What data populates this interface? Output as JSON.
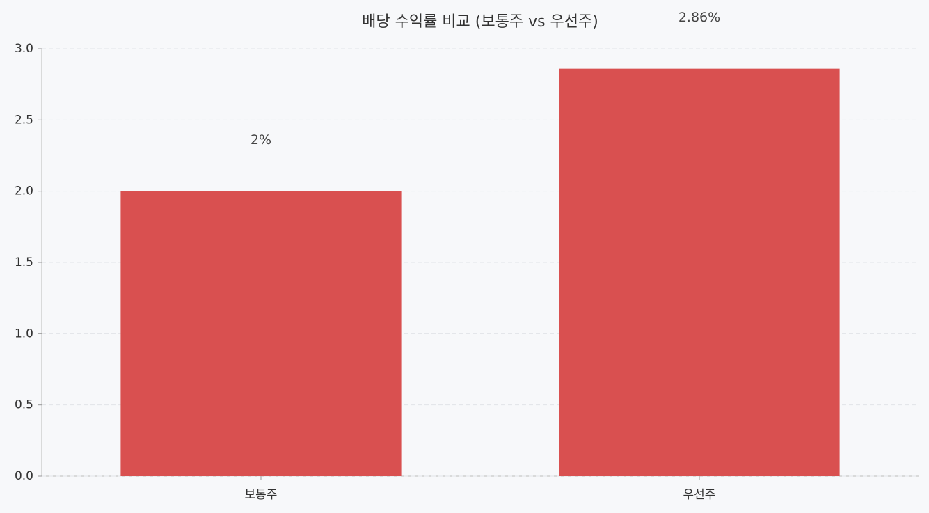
{
  "chart_data": {
    "type": "bar",
    "title": "배당 수익률 비교 (보통주 vs 우선주)",
    "categories": [
      "보통주",
      "우선주"
    ],
    "values": [
      2,
      2.86
    ],
    "value_labels": [
      "2%",
      "2.86%"
    ],
    "color": "#d95050",
    "ylim": [
      0,
      3
    ],
    "yticks": [
      {
        "value": 0,
        "label": "0.0"
      },
      0.5,
      {
        "value": 1,
        "label": "1.0"
      },
      1.5,
      {
        "value": 2,
        "label": "2.0"
      },
      2.5,
      {
        "value": 3,
        "label": "3.0"
      }
    ],
    "grid": true
  }
}
